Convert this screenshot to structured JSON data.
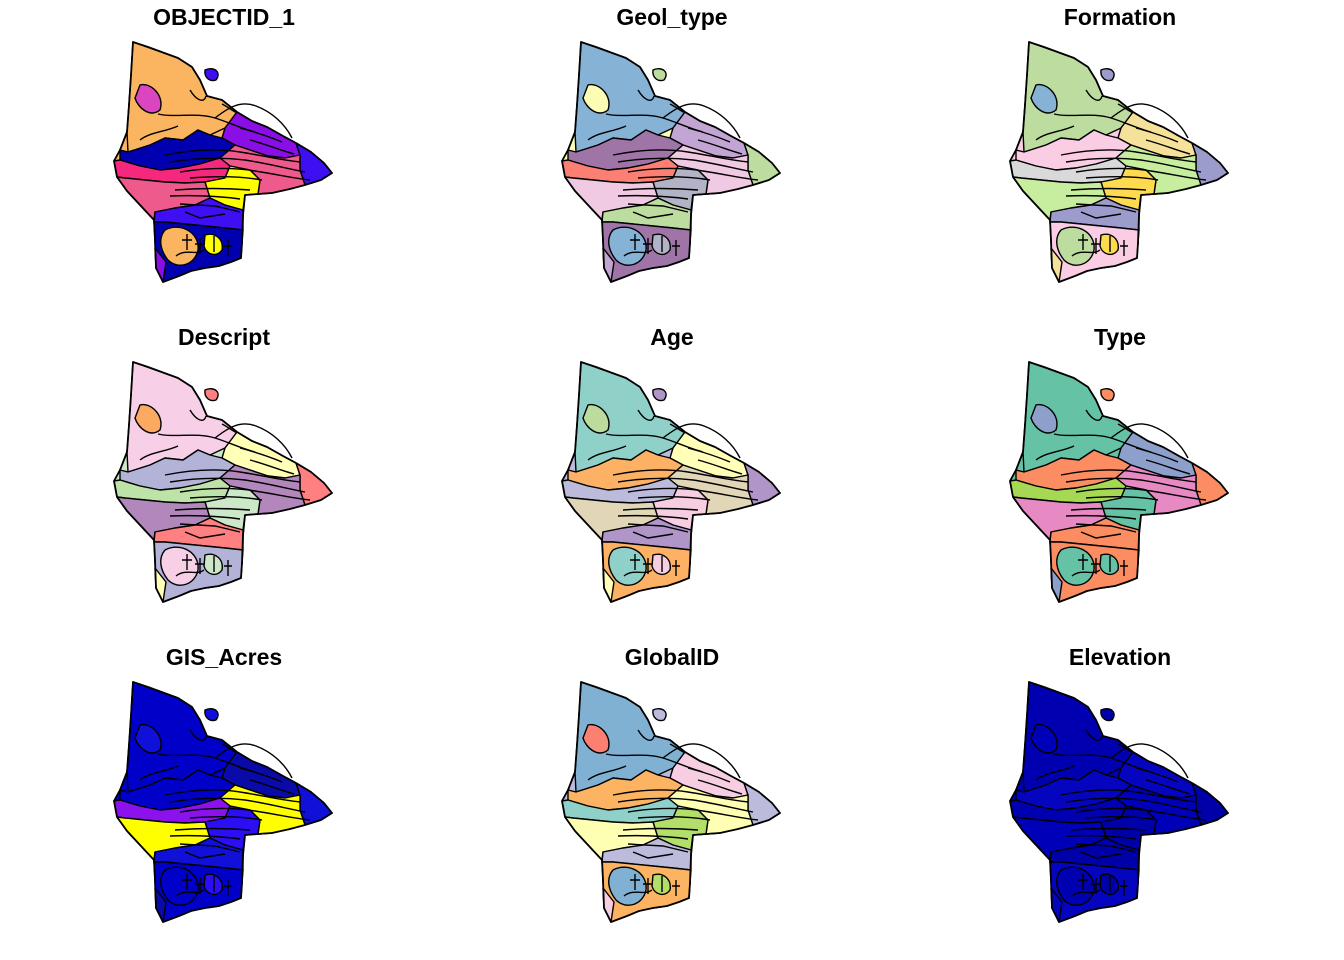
{
  "maps": [
    {
      "title": "OBJECTID_1",
      "palette": [
        "#FBB45F",
        "#3D0FF2",
        "#8A0EE6",
        "#EF5A8C",
        "#F5287E",
        "#FFFF00",
        "#0000B0",
        "#D946C0"
      ]
    },
    {
      "title": "Geol_type",
      "palette": [
        "#FCFCB4",
        "#86B2D5",
        "#BDDCA0",
        "#C3A5D3",
        "#F0C9E2",
        "#FB7F72",
        "#B3B3C8",
        "#9F74A7"
      ]
    },
    {
      "title": "Formation",
      "palette": [
        "#FBCDE4",
        "#86B2D5",
        "#BDDCA0",
        "#9C9CCC",
        "#F6E19A",
        "#C7ED9E",
        "#D9D9D9",
        "#FDDA4E"
      ]
    },
    {
      "title": "Descript",
      "palette": [
        "#CDE8C9",
        "#B3B3D8",
        "#FCA961",
        "#F7CFE6",
        "#FF8080",
        "#FFFFB5",
        "#B187BC",
        "#BDE3A8"
      ]
    },
    {
      "title": "Age",
      "palette": [
        "#BCBBDB",
        "#F7CDE2",
        "#FCB165",
        "#BCDC9E",
        "#8FD1C8",
        "#B095C8",
        "#FFFFB7",
        "#E1D7B8"
      ]
    },
    {
      "title": "Type",
      "palette": [
        "#66C2A5",
        "#FC8D62",
        "#8DA0CB",
        "#E78AC3",
        "#A6D854"
      ]
    },
    {
      "title": "GIS_Acres",
      "palette": [
        "#0000C8",
        "#1010D8",
        "#0A0AA8",
        "#FFFF00",
        "#8B12EC",
        "#2B0EF3"
      ]
    },
    {
      "title": "GlobalID",
      "palette": [
        "#BCBBDB",
        "#F7CDE2",
        "#FFFFB3",
        "#8FD1C8",
        "#B3DE69",
        "#FDB462",
        "#FB8072",
        "#80B1D3"
      ]
    },
    {
      "title": "Elevation",
      "palette": [
        "#0000B0",
        "#0000A8",
        "#0505C0",
        "#0000B8"
      ]
    }
  ]
}
